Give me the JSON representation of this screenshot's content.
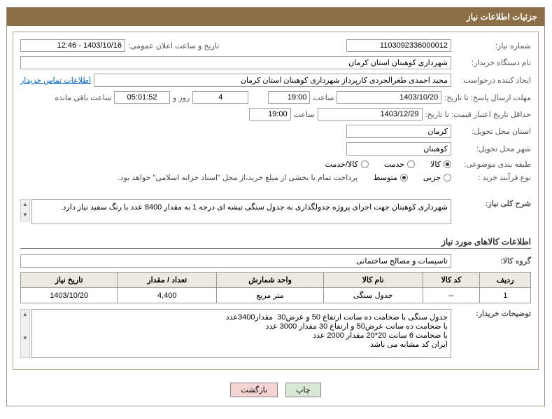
{
  "title": "جزئیات اطلاعات نیاز",
  "fields": {
    "need_number_lbl": "شماره نیاز:",
    "need_number": "1103092336000012",
    "announce_lbl": "تاریخ و ساعت اعلان عمومی:",
    "announce_value": "1403/10/16 - 12:46",
    "buyer_org_lbl": "نام دستگاه خریدار:",
    "buyer_org": "شهرداری کوهبنان استان کرمان",
    "requester_lbl": "ایجاد کننده درخواست:",
    "requester": "مجید احمدی طغرالجردی کارپرداز شهرداری کوهبنان استان کرمان",
    "contact_link": "اطلاعات تماس خریدار",
    "response_deadline_lbl": "مهلت ارسال پاسخ: تا تاریخ:",
    "response_date": "1403/10/20",
    "time_lbl": "ساعت",
    "response_time": "19:00",
    "days": "4",
    "days_lbl": "روز و",
    "remain_time": "05:01:52",
    "remain_lbl": "ساعت باقی مانده",
    "validity_lbl": "حداقل تاریخ اعتبار قیمت: تا تاریخ:",
    "validity_date": "1403/12/29",
    "validity_time": "19:00",
    "province_lbl": "استان محل تحویل:",
    "province": "کرمان",
    "city_lbl": "شهر محل تحویل:",
    "city": "کوهبنان",
    "subject_type_lbl": "طبقه بندی موضوعی:",
    "opt_goods": "کالا",
    "opt_service": "خدمت",
    "opt_goods_service": "کالا/خدمت",
    "process_lbl": "نوع فرآیند خرید :",
    "opt_minor": "جزیی",
    "opt_medium": "متوسط",
    "payment_note": "پرداخت تمام یا بخشی از مبلغ خرید،‌از محل \"اسناد خزانه اسلامی\" خواهد بود.",
    "desc_lbl": "شرح کلی نیاز:",
    "desc": "شهرداری کوهبنان جهت اجرای پروژه جدولگذاری به جدول سنگی تیشه ای درجه 1 به مقدار 8400 عدد با رنگ سفید نیاز دارد.",
    "goods_section": "اطلاعات کالاهای مورد نیاز",
    "goods_group_lbl": "گروه کالا:",
    "goods_group": "تاسیسات و مصالح ساختمانی",
    "buyer_notes_lbl": "توضیحات خریدار:",
    "buyer_notes": "جدول سنگی با ضخامت ده سانت ارتفاع 50 و عرض30  مقدار3400عدد\nبا ضخامت ده سانت عرض50 و ارتفاع 30 مقدار 3000 عدد\nبا ضخامت 6 سانت 20*20 مقدار 2000 عدد\nایران کد مشابه می باشد"
  },
  "table": {
    "cols": [
      "ردیف",
      "کد کالا",
      "نام کالا",
      "واحد شمارش",
      "تعداد / مقدار",
      "تاریخ نیاز"
    ],
    "rows": [
      [
        "1",
        "--",
        "جدول سنگی",
        "متر مربع",
        "4,400",
        "1403/10/20"
      ]
    ]
  },
  "buttons": {
    "print": "چاپ",
    "back": "بازگشت"
  },
  "colors": {
    "titlebar_bg": "#8c6f47",
    "titlebar_text": "#ffffff",
    "border": "#a0a0a0",
    "link": "#0066cc",
    "btn_print_bg": "#d9e8d4",
    "btn_back_bg": "#f4d3d3"
  }
}
